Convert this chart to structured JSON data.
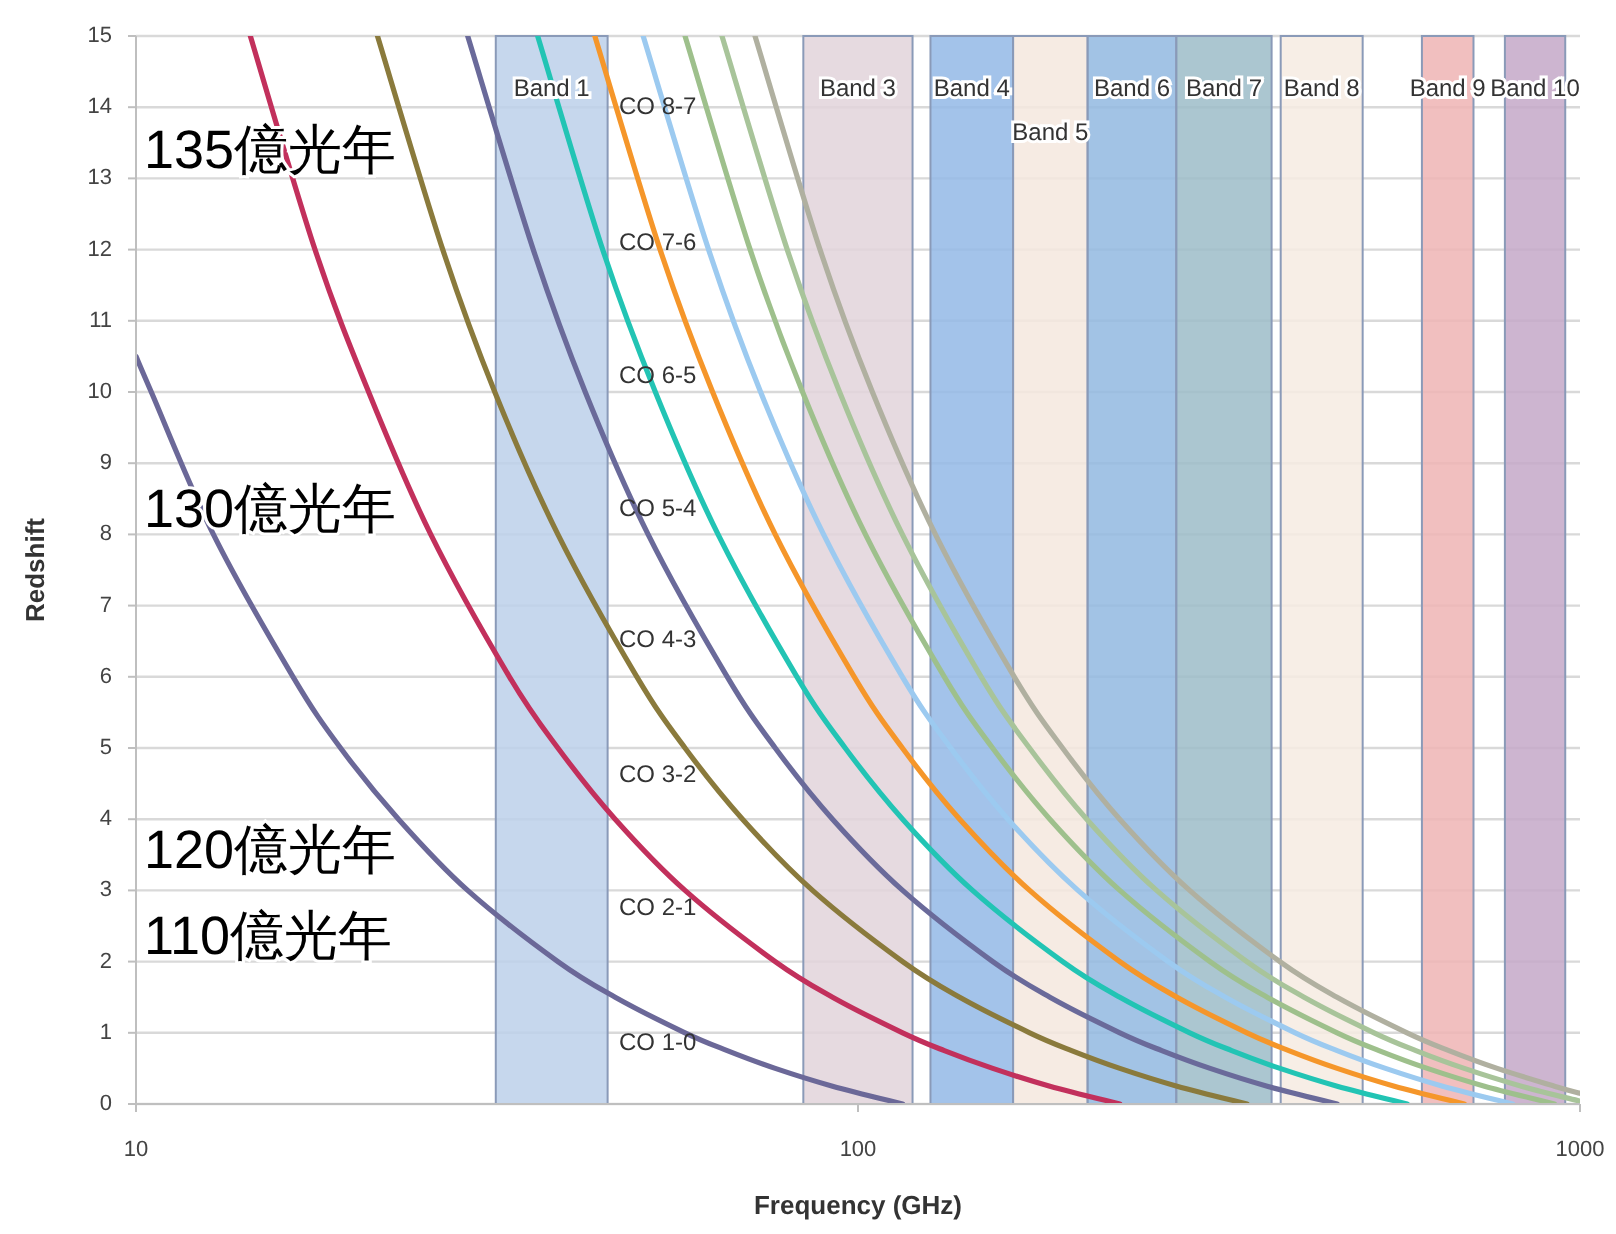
{
  "chart_data": {
    "type": "line",
    "xlabel": "Frequency (GHz)",
    "ylabel": "Redshift",
    "log": "x",
    "xlim": [
      10,
      1000
    ],
    "xticks": [
      10,
      100,
      1000
    ],
    "ylim": [
      0,
      15
    ],
    "yticks": [
      0,
      1,
      2,
      3,
      4,
      5,
      6,
      7,
      8,
      9,
      10,
      11,
      12,
      13,
      14,
      15
    ],
    "grid": "y",
    "legend": false,
    "marker": "none",
    "line_style": "solid",
    "series": [
      {
        "name": "CO 1-0",
        "color": "#6b6898",
        "x": [
          115.3,
          92.2,
          76.8,
          65.9,
          57.6,
          46.1,
          38.4,
          28.8,
          23.1,
          19.2,
          16.5,
          12.8,
          10.5,
          10.0
        ],
        "values": [
          0,
          0.25,
          0.5,
          0.75,
          1,
          1.5,
          2,
          3,
          4,
          5,
          6,
          8,
          10,
          10.5
        ]
      },
      {
        "name": "CO 2-1",
        "color": "#c2305c",
        "x": [
          230.5,
          184.4,
          153.7,
          131.7,
          115.3,
          92.2,
          76.8,
          57.6,
          46.1,
          38.4,
          32.9,
          25.6,
          21.0,
          17.7,
          14.4
        ],
        "values": [
          0,
          0.25,
          0.5,
          0.75,
          1,
          1.5,
          2,
          3,
          4,
          5,
          6,
          8,
          10,
          12,
          15
        ]
      },
      {
        "name": "CO 3-2",
        "color": "#8a7a3c",
        "x": [
          345.8,
          276.6,
          230.5,
          197.6,
          172.9,
          138.3,
          115.3,
          86.5,
          69.2,
          57.6,
          49.4,
          38.4,
          31.4,
          26.6,
          21.6
        ],
        "values": [
          0,
          0.25,
          0.5,
          0.75,
          1,
          1.5,
          2,
          3,
          4,
          5,
          6,
          8,
          10,
          12,
          15
        ]
      },
      {
        "name": "CO 4-3",
        "color": "#6a6a9a",
        "x": [
          461.0,
          368.8,
          307.4,
          263.5,
          230.5,
          184.4,
          153.7,
          115.3,
          92.2,
          76.8,
          65.9,
          51.2,
          41.9,
          35.5,
          28.8
        ],
        "values": [
          0,
          0.25,
          0.5,
          0.75,
          1,
          1.5,
          2,
          3,
          4,
          5,
          6,
          8,
          10,
          12,
          15
        ]
      },
      {
        "name": "CO 5-4",
        "color": "#22c4b4",
        "x": [
          576.3,
          461.0,
          384.2,
          329.3,
          288.1,
          230.5,
          192.1,
          144.1,
          115.3,
          96.0,
          82.3,
          64.0,
          52.4,
          44.3,
          36.0
        ],
        "values": [
          0,
          0.25,
          0.5,
          0.75,
          1,
          1.5,
          2,
          3,
          4,
          5,
          6,
          8,
          10,
          12,
          15
        ]
      },
      {
        "name": "CO 6-5",
        "color": "#f5962a",
        "x": [
          691.5,
          553.2,
          461.0,
          395.1,
          345.7,
          276.6,
          230.5,
          172.9,
          138.3,
          115.2,
          98.8,
          76.8,
          62.9,
          53.2,
          43.2
        ],
        "values": [
          0,
          0.25,
          0.5,
          0.75,
          1,
          1.5,
          2,
          3,
          4,
          5,
          6,
          8,
          10,
          12,
          15
        ]
      },
      {
        "name": "CO 7-6",
        "color": "#9ccaf0",
        "x": [
          806.7,
          645.3,
          537.8,
          460.9,
          403.3,
          322.7,
          268.9,
          201.7,
          161.3,
          134.4,
          115.2,
          89.6,
          73.3,
          62.1,
          50.4
        ],
        "values": [
          0,
          0.25,
          0.5,
          0.75,
          1,
          1.5,
          2,
          3,
          4,
          5,
          6,
          8,
          10,
          12,
          15
        ]
      },
      {
        "name": "CO 8-7",
        "color": "#9ec08c",
        "x": [
          921.8,
          737.4,
          614.5,
          526.7,
          460.9,
          368.7,
          307.3,
          230.5,
          184.4,
          153.6,
          131.7,
          102.4,
          83.8,
          70.9,
          57.6
        ],
        "values": [
          0,
          0.25,
          0.5,
          0.75,
          1,
          1.5,
          2,
          3,
          4,
          5,
          6,
          8,
          10,
          12,
          15
        ]
      },
      {
        "color": "#a8c49a",
        "x": [
          1000,
          829.5,
          691.3,
          592.5,
          518.5,
          414.8,
          345.6,
          259.2,
          207.4,
          172.8,
          148.1,
          115.2,
          94.3,
          79.8,
          64.8
        ],
        "values": [
          0.04,
          0.25,
          0.5,
          0.75,
          1,
          1.5,
          2,
          3,
          4,
          5,
          6,
          8,
          10,
          12,
          15
        ]
      },
      {
        "color": "#b0b0a0",
        "x": [
          1000,
          921.6,
          768.0,
          658.3,
          576.0,
          460.8,
          384.0,
          288.0,
          230.4,
          192.0,
          164.6,
          128.0,
          104.7,
          88.6,
          72.0
        ],
        "values": [
          0.15,
          0.25,
          0.5,
          0.75,
          1,
          1.5,
          2,
          3,
          4,
          5,
          6,
          8,
          10,
          12,
          15
        ]
      }
    ],
    "bands": [
      {
        "axis": "x",
        "from": 31.5,
        "to": 45,
        "label": "Band 1",
        "color": "#bcd0ea"
      },
      {
        "axis": "x",
        "from": 84,
        "to": 119,
        "label": "Band 3",
        "color": "#e2d4da"
      },
      {
        "axis": "x",
        "from": 126,
        "to": 164,
        "label": "Band 4",
        "color": "#93b8e6"
      },
      {
        "axis": "x",
        "from": 164,
        "to": 208,
        "label": "Band 5",
        "color": "#f4e8de"
      },
      {
        "axis": "x",
        "from": 208,
        "to": 276,
        "label": "Band 6",
        "color": "#92b8e0"
      },
      {
        "axis": "x",
        "from": 276,
        "to": 374,
        "label": "Band 7",
        "color": "#9cbcc8"
      },
      {
        "axis": "x",
        "from": 385,
        "to": 500,
        "label": "Band 8",
        "color": "#f6ebe2"
      },
      {
        "axis": "x",
        "from": 604,
        "to": 712,
        "label": "Band 9",
        "color": "#eeb4b4"
      },
      {
        "axis": "x",
        "from": 787,
        "to": 954,
        "label": "Band 10",
        "color": "#c4a8c8"
      }
    ],
    "annotations": [
      "135億光年",
      "130億光年",
      "120億光年",
      "110億光年"
    ]
  }
}
